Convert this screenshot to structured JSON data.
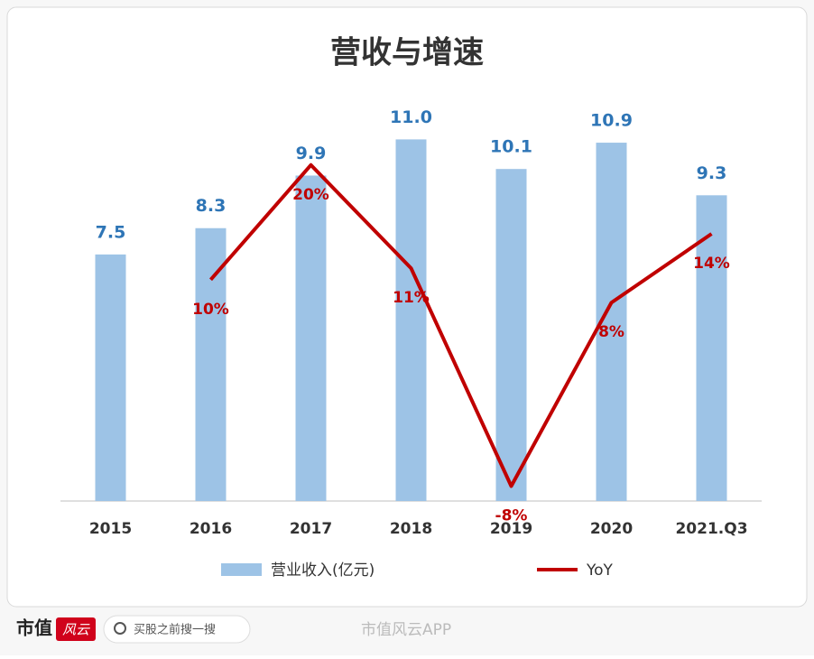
{
  "chart_data": {
    "type": "bar-line",
    "title": "营收与增速",
    "categories": [
      "2015",
      "2016",
      "2017",
      "2018",
      "2019",
      "2020",
      "2021.Q3"
    ],
    "series": [
      {
        "name": "营业收入(亿元)",
        "color": "#9dc3e6",
        "label_color": "#2e75b6",
        "type": "bar",
        "values": [
          7.5,
          8.3,
          9.9,
          11.0,
          10.1,
          10.9,
          9.3
        ],
        "value_labels": [
          "7.5",
          "8.3",
          "9.9",
          "11.0",
          "10.1",
          "10.9",
          "9.3"
        ]
      },
      {
        "name": "YoY",
        "color": "#c00000",
        "type": "line",
        "axis": "y2",
        "values": [
          null,
          10,
          20,
          11,
          -8,
          8,
          14
        ],
        "value_labels": [
          null,
          "10%",
          "20%",
          "11%",
          "-8%",
          "8%",
          "14%"
        ]
      }
    ],
    "ylim": [
      0,
      12
    ],
    "y2lim": [
      -9.3,
      25.1
    ],
    "legend": "bottom"
  },
  "footer": {
    "logo": "市值",
    "logo_badge": "风云",
    "search": "买股之前搜一搜",
    "watermark": "市值风云APP"
  }
}
